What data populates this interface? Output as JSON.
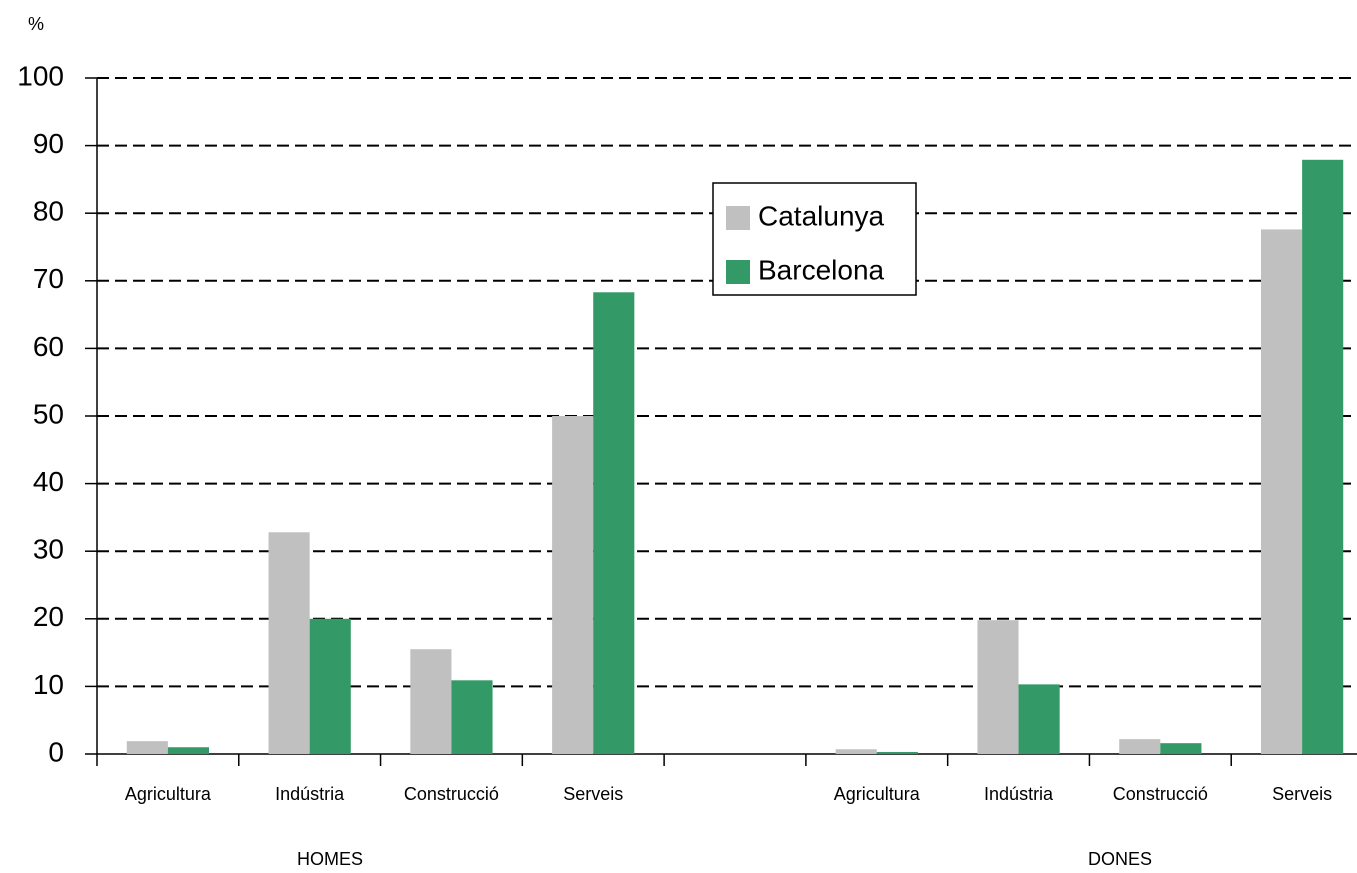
{
  "chart_data": {
    "type": "bar",
    "y_label": "%",
    "categories": [
      "Agricultura",
      "Indústria",
      "Construcció",
      "Serveis",
      null,
      "Agricultura",
      "Indústria",
      "Construcció",
      "Serveis"
    ],
    "groups": [
      "HOMES",
      "DONES"
    ],
    "series": [
      {
        "name": "Catalunya",
        "color": "#c0c0c0",
        "values": [
          1.9,
          32.8,
          15.5,
          50.0,
          null,
          0.7,
          19.8,
          2.2,
          77.6
        ]
      },
      {
        "name": "Barcelona",
        "color": "#339966",
        "values": [
          1.0,
          20.0,
          10.9,
          68.3,
          null,
          0.3,
          10.3,
          1.6,
          87.9
        ]
      }
    ],
    "ylim": [
      0,
      100
    ],
    "yticks": [
      0,
      10,
      20,
      30,
      40,
      50,
      60,
      70,
      80,
      90,
      100
    ],
    "grid": true
  }
}
